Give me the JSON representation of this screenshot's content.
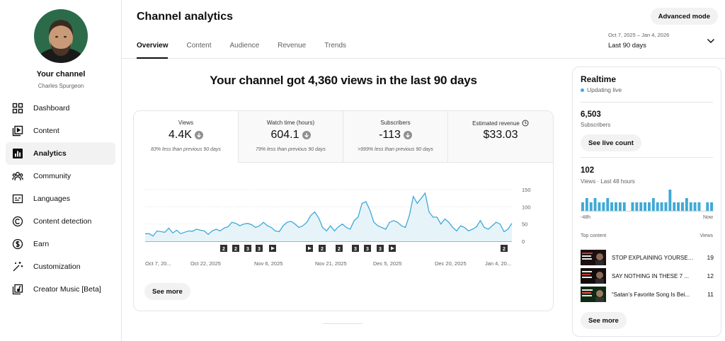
{
  "sidebar": {
    "channel_title": "Your channel",
    "channel_name": "Charles Spurgeon",
    "items": [
      {
        "label": "Dashboard",
        "icon": "dashboard-icon"
      },
      {
        "label": "Content",
        "icon": "content-icon"
      },
      {
        "label": "Analytics",
        "icon": "analytics-icon",
        "active": true
      },
      {
        "label": "Community",
        "icon": "community-icon"
      },
      {
        "label": "Languages",
        "icon": "languages-icon"
      },
      {
        "label": "Content detection",
        "icon": "copyright-icon"
      },
      {
        "label": "Earn",
        "icon": "dollar-icon"
      },
      {
        "label": "Customization",
        "icon": "magic-wand-icon"
      },
      {
        "label": "Creator Music [Beta]",
        "icon": "music-library-icon"
      }
    ]
  },
  "header": {
    "title": "Channel analytics",
    "tabs": [
      "Overview",
      "Content",
      "Audience",
      "Revenue",
      "Trends"
    ],
    "active_tab": "Overview",
    "advanced_mode": "Advanced mode",
    "date_range_dates": "Oct 7, 2025 – Jan 4, 2026",
    "date_range_label": "Last 90 days"
  },
  "main": {
    "headline": "Your channel got 4,360 views in the last 90 days",
    "metrics": [
      {
        "label": "Views",
        "value": "4.4K",
        "note": "83% less than previous 90 days",
        "trend": "down"
      },
      {
        "label": "Watch time (hours)",
        "value": "604.1",
        "note": "79% less than previous 90 days",
        "trend": "down"
      },
      {
        "label": "Subscribers",
        "value": "-113",
        "note": ">999% less than previous 90 days",
        "trend": "down"
      },
      {
        "label": "Estimated revenue",
        "value": "$33.03",
        "note": "",
        "trend": "none"
      }
    ],
    "see_more": "See more"
  },
  "chart_data": {
    "type": "area",
    "title": "",
    "xlabel": "",
    "ylabel": "",
    "ylim": [
      0,
      150
    ],
    "yticks": [
      "0",
      "50",
      "100",
      "150"
    ],
    "x_tick_labels": [
      "Oct 7, 20...",
      "Oct 22, 2025",
      "Nov 6, 2025",
      "Nov 21, 2025",
      "Dec 5, 2025",
      "Dec 20, 2025",
      "Jan 4, 20..."
    ],
    "grid": true,
    "series": [
      {
        "values": [
          22,
          22,
          15,
          30,
          28,
          26,
          38,
          24,
          32,
          22,
          26,
          30,
          29,
          35,
          32,
          30,
          20,
          30,
          35,
          30,
          38,
          42,
          55,
          52,
          45,
          50,
          52,
          48,
          40,
          45,
          55,
          45,
          40,
          30,
          28,
          45,
          55,
          58,
          50,
          40,
          45,
          55,
          75,
          85,
          68,
          40,
          30,
          45,
          30,
          42,
          50,
          40,
          35,
          60,
          70,
          110,
          115,
          90,
          55,
          45,
          40,
          35,
          55,
          60,
          55,
          45,
          40,
          75,
          130,
          110,
          125,
          140,
          85,
          70,
          70,
          50,
          65,
          55,
          40,
          30,
          45,
          40,
          30,
          35,
          42,
          60,
          40,
          35,
          45,
          55,
          50,
          28,
          35,
          52
        ]
      }
    ],
    "markers": [
      {
        "type": "number",
        "value": "2"
      },
      {
        "type": "number",
        "value": "2"
      },
      {
        "type": "number",
        "value": "3"
      },
      {
        "type": "number",
        "value": "3"
      },
      {
        "type": "play",
        "value": ""
      },
      {
        "type": "play",
        "value": ""
      },
      {
        "type": "number",
        "value": "2"
      },
      {
        "type": "number",
        "value": "2"
      },
      {
        "type": "number",
        "value": "3"
      },
      {
        "type": "number",
        "value": "3"
      },
      {
        "type": "number",
        "value": "3"
      },
      {
        "type": "play",
        "value": ""
      },
      {
        "type": "number",
        "value": "2"
      }
    ],
    "accent": "#3fa9d6",
    "fill": "#e6f4fa"
  },
  "realtime": {
    "title": "Realtime",
    "status": "Updating live",
    "subscribers_value": "6,503",
    "subscribers_label": "Subscribers",
    "see_live_count": "See live count",
    "views_value": "102",
    "views_label": "Views · Last 48 hours",
    "axis_start": "-48h",
    "axis_end": "Now",
    "bars": [
      2,
      3,
      2,
      3,
      2,
      2,
      3,
      2,
      2,
      2,
      2,
      0,
      2,
      2,
      2,
      2,
      2,
      3,
      2,
      2,
      2,
      5,
      2,
      2,
      2,
      3,
      2,
      2,
      2,
      0,
      2,
      2
    ],
    "top_content_label": "Top content",
    "views_column": "Views",
    "top_content": [
      {
        "title": "STOP EXPLAINING YOURSELF...",
        "views": "19"
      },
      {
        "title": "SAY NOTHING IN THESE 7 ...",
        "views": "12"
      },
      {
        "title": "“Satan’s Favorite Song Is Bei...",
        "views": "11"
      }
    ],
    "see_more": "See more"
  }
}
